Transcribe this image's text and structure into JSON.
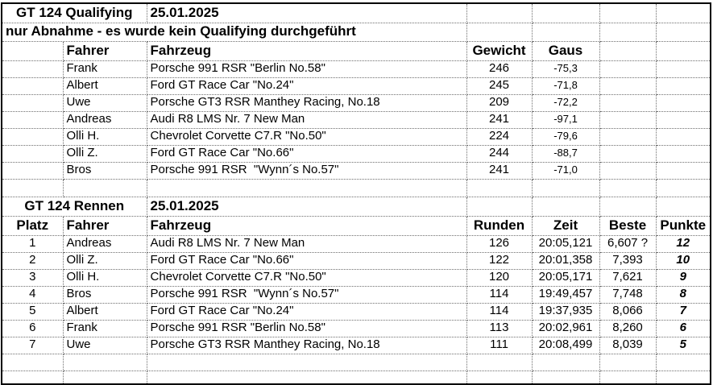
{
  "qualifying": {
    "title": "GT 124 Qualifying",
    "date": "25.01.2025",
    "note": "nur Abnahme - es wurde kein Qualifying durchgeführt",
    "headers": {
      "fahrer": "Fahrer",
      "fahrzeug": "Fahrzeug",
      "gewicht": "Gewicht",
      "gaus": "Gaus"
    },
    "rows": [
      {
        "fahrer": "Frank",
        "fahrzeug": "Porsche 991 RSR \"Berlin No.58\"",
        "gewicht": "246",
        "gaus": "-75,3"
      },
      {
        "fahrer": "Albert",
        "fahrzeug": "Ford GT Race Car \"No.24\"",
        "gewicht": "245",
        "gaus": "-71,8"
      },
      {
        "fahrer": "Uwe",
        "fahrzeug": "Porsche GT3 RSR Manthey Racing, No.18",
        "gewicht": "209",
        "gaus": "-72,2"
      },
      {
        "fahrer": "Andreas",
        "fahrzeug": "Audi R8 LMS Nr. 7 New Man",
        "gewicht": "241",
        "gaus": "-97,1"
      },
      {
        "fahrer": "Olli H.",
        "fahrzeug": "Chevrolet Corvette C7.R \"No.50\"",
        "gewicht": "224",
        "gaus": "-79,6"
      },
      {
        "fahrer": "Olli Z.",
        "fahrzeug": "Ford GT Race Car \"No.66\"",
        "gewicht": "244",
        "gaus": "-88,7"
      },
      {
        "fahrer": "Bros",
        "fahrzeug": "Porsche 991 RSR  \"Wynn´s No.57\"",
        "gewicht": "241",
        "gaus": "-71,0"
      }
    ]
  },
  "race": {
    "title": "GT 124 Rennen",
    "date": "25.01.2025",
    "headers": {
      "platz": "Platz",
      "fahrer": "Fahrer",
      "fahrzeug": "Fahrzeug",
      "runden": "Runden",
      "zeit": "Zeit",
      "beste": "Beste",
      "punkte": "Punkte"
    },
    "rows": [
      {
        "platz": "1",
        "fahrer": "Andreas",
        "fahrzeug": "Audi R8 LMS Nr. 7 New Man",
        "runden": "126",
        "zeit": "20:05,121",
        "beste": "6,607 ?",
        "punkte": "12"
      },
      {
        "platz": "2",
        "fahrer": "Olli Z.",
        "fahrzeug": "Ford GT Race Car \"No.66\"",
        "runden": "122",
        "zeit": "20:01,358",
        "beste": "7,393",
        "punkte": "10"
      },
      {
        "platz": "3",
        "fahrer": "Olli H.",
        "fahrzeug": "Chevrolet Corvette C7.R \"No.50\"",
        "runden": "120",
        "zeit": "20:05,171",
        "beste": "7,621",
        "punkte": "9"
      },
      {
        "platz": "4",
        "fahrer": "Bros",
        "fahrzeug": "Porsche 991 RSR  \"Wynn´s No.57\"",
        "runden": "114",
        "zeit": "19:49,457",
        "beste": "7,748",
        "punkte": "8"
      },
      {
        "platz": "5",
        "fahrer": "Albert",
        "fahrzeug": "Ford GT Race Car \"No.24\"",
        "runden": "114",
        "zeit": "19:37,935",
        "beste": "8,066",
        "punkte": "7"
      },
      {
        "platz": "6",
        "fahrer": "Frank",
        "fahrzeug": "Porsche 991 RSR \"Berlin No.58\"",
        "runden": "113",
        "zeit": "20:02,961",
        "beste": "8,260",
        "punkte": "6"
      },
      {
        "platz": "7",
        "fahrer": "Uwe",
        "fahrzeug": "Porsche GT3 RSR Manthey Racing, No.18",
        "runden": "111",
        "zeit": "20:08,499",
        "beste": "8,039",
        "punkte": "5"
      }
    ]
  },
  "colors": {
    "background": "#ffffff",
    "text": "#000000",
    "gridline": "#6e6e6e",
    "frame": "#000000"
  }
}
